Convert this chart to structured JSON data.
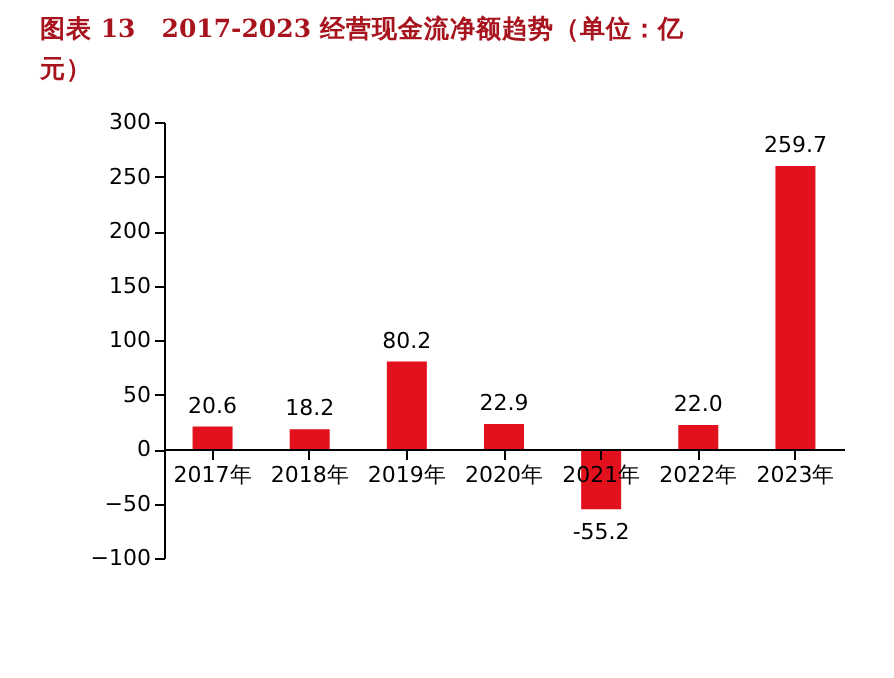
{
  "chart_data": {
    "type": "bar",
    "title": "图表 13　2017-2023 经营现金流净额趋势（单位：亿元）",
    "categories": [
      "2017年",
      "2018年",
      "2019年",
      "2020年",
      "2021年",
      "2022年",
      "2023年"
    ],
    "values": [
      20.6,
      18.2,
      80.2,
      22.9,
      -55.2,
      22.0,
      259.7
    ],
    "value_labels": [
      "20.6",
      "18.2",
      "80.2",
      "22.9",
      "-55.2",
      "22.0",
      "259.7"
    ],
    "color": "#e3101e",
    "ylim": [
      -100,
      300
    ],
    "yticks": [
      -100,
      -50,
      0,
      50,
      100,
      150,
      200,
      250,
      300
    ],
    "grid": false
  }
}
